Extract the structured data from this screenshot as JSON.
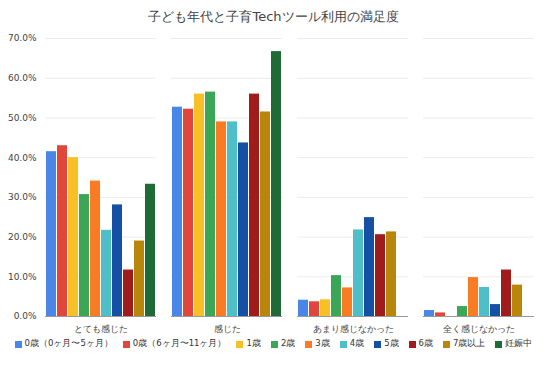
{
  "chart_data": {
    "type": "bar",
    "title": "子ども年代と子育Techツール利用の満足度",
    "categories": [
      "とても感じた",
      "感じた",
      "あまり感じなかった",
      "全く感じなかった"
    ],
    "series": [
      {
        "name": "0歳（0ヶ月〜5ヶ月）",
        "color": "#4a86e8",
        "values": [
          41.5,
          52.7,
          4.1,
          1.5
        ]
      },
      {
        "name": "0歳（6ヶ月〜11ヶ月）",
        "color": "#e0463c",
        "values": [
          43.0,
          52.2,
          3.7,
          0.9
        ]
      },
      {
        "name": "1歳",
        "color": "#f6c026",
        "values": [
          40.0,
          56.0,
          4.2,
          0
        ]
      },
      {
        "name": "2歳",
        "color": "#3aa757",
        "values": [
          30.7,
          56.5,
          10.3,
          2.5
        ]
      },
      {
        "name": "3歳",
        "color": "#f97c25",
        "values": [
          34.1,
          49.0,
          7.2,
          9.8
        ]
      },
      {
        "name": "4歳",
        "color": "#4ebfc8",
        "values": [
          21.7,
          49.0,
          21.8,
          7.3
        ]
      },
      {
        "name": "5歳",
        "color": "#1550a4",
        "values": [
          28.1,
          43.7,
          24.9,
          3.0
        ]
      },
      {
        "name": "6歳",
        "color": "#a01c1c",
        "values": [
          11.7,
          56.0,
          20.6,
          11.7
        ]
      },
      {
        "name": "7歳以上",
        "color": "#b8860b",
        "values": [
          19.0,
          51.5,
          21.3,
          7.9
        ]
      },
      {
        "name": "妊娠中",
        "color": "#1e6b35",
        "values": [
          33.3,
          66.7,
          0,
          0
        ]
      }
    ],
    "ylim": [
      0,
      70
    ],
    "yticks": [
      {
        "value": 0,
        "label": "0.0%"
      },
      {
        "value": 10,
        "label": "10.0%"
      },
      {
        "value": 20,
        "label": "20.0%"
      },
      {
        "value": 30,
        "label": "30.0%"
      },
      {
        "value": 40,
        "label": "40.0%"
      },
      {
        "value": 50,
        "label": "50.0%"
      },
      {
        "value": 60,
        "label": "60.0%"
      },
      {
        "value": 70,
        "label": "70.0%"
      }
    ],
    "grid": true
  }
}
